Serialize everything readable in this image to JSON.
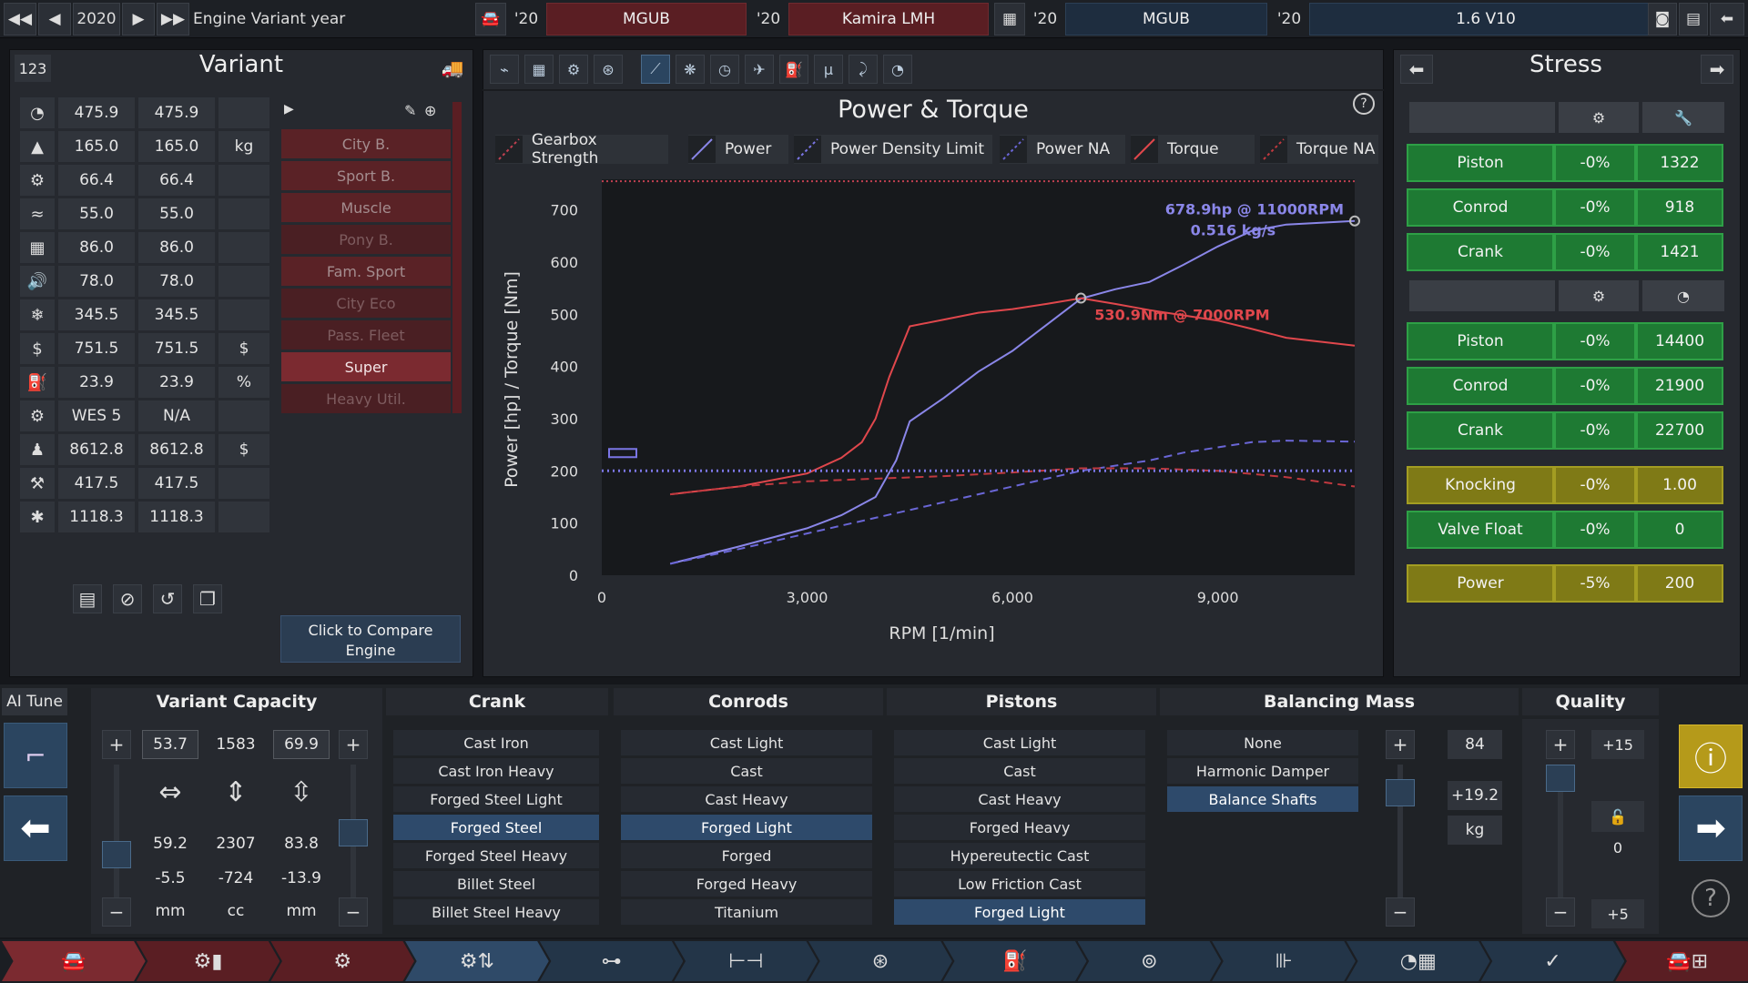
{
  "topbar": {
    "year": "2020",
    "year_label": "Engine Variant year",
    "sel1_year": "'20",
    "sel1": "MGUB",
    "sel2_year": "'20",
    "sel2": "Kamira LMH",
    "sel3_year": "'20",
    "sel3": "MGUB",
    "sel4_year": "'20",
    "sel4": "1.6 V10"
  },
  "variant": {
    "id": "123",
    "title": "Variant",
    "rows": [
      {
        "icon": "rpm-icon",
        "a": "475.9",
        "b": "475.9",
        "unit": ""
      },
      {
        "icon": "weight-icon",
        "a": "165.0",
        "b": "165.0",
        "unit": "kg"
      },
      {
        "icon": "engine-icon",
        "a": "66.4",
        "b": "66.4",
        "unit": ""
      },
      {
        "icon": "smoothness-icon",
        "a": "55.0",
        "b": "55.0",
        "unit": ""
      },
      {
        "icon": "reliability-icon",
        "a": "86.0",
        "b": "86.0",
        "unit": ""
      },
      {
        "icon": "noise-icon",
        "a": "78.0",
        "b": "78.0",
        "unit": ""
      },
      {
        "icon": "emissions-icon",
        "a": "345.5",
        "b": "345.5",
        "unit": ""
      },
      {
        "icon": "cost-icon",
        "a": "751.5",
        "b": "751.5",
        "unit": "$"
      },
      {
        "icon": "fuel-icon",
        "a": "23.9",
        "b": "23.9",
        "unit": "%"
      },
      {
        "icon": "fuel-type-icon",
        "a": "WES 5",
        "b": "N/A",
        "unit": ""
      },
      {
        "icon": "engineering-cost-icon",
        "a": "8612.8",
        "b": "8612.8",
        "unit": "$"
      },
      {
        "icon": "tooling-icon",
        "a": "417.5",
        "b": "417.5",
        "unit": ""
      },
      {
        "icon": "service-icon",
        "a": "1118.3",
        "b": "1118.3",
        "unit": ""
      }
    ],
    "categories": [
      {
        "label": "City B.",
        "state": "mid"
      },
      {
        "label": "Sport B.",
        "state": "mid"
      },
      {
        "label": "Muscle",
        "state": "mid"
      },
      {
        "label": "Pony B.",
        "state": "dim"
      },
      {
        "label": "Fam. Sport",
        "state": "mid"
      },
      {
        "label": "City Eco",
        "state": "dim"
      },
      {
        "label": "Pass. Fleet",
        "state": "dim"
      },
      {
        "label": "Super",
        "state": "sel"
      },
      {
        "label": "Heavy Util.",
        "state": "dim"
      }
    ],
    "compare_line1": "Click to Compare",
    "compare_line2": "Engine"
  },
  "chart": {
    "toolbar_icons": [
      "power-graph-icon",
      "layout-icon",
      "engine-icon",
      "turbo-icon",
      "torque-graph-icon",
      "cooling-icon",
      "gauge-icon",
      "tuning-icon",
      "fuel-icon",
      "mu-icon",
      "exhaust-icon",
      "rpm-gauge-icon"
    ],
    "help": "?"
  },
  "chart_data": {
    "type": "line",
    "title": "Power & Torque",
    "xlabel": "RPM [1/min]",
    "ylabel": "Power [hp] / Torque [Nm]",
    "xlim": [
      0,
      11000
    ],
    "ylim": [
      0,
      750
    ],
    "xticks": [
      {
        "v": 0,
        "label": "0"
      },
      {
        "v": 3000,
        "label": "3,000"
      },
      {
        "v": 6000,
        "label": "6,000"
      },
      {
        "v": 9000,
        "label": "9,000"
      }
    ],
    "yticks": [
      0,
      100,
      200,
      300,
      400,
      500,
      600,
      700
    ],
    "legend": [
      {
        "name": "Gearbox Strength",
        "color": "#c04050",
        "dash": true
      },
      {
        "name": "Power",
        "color": "#8a86e8",
        "dash": false
      },
      {
        "name": "Power Density Limit",
        "color": "#7b76e6",
        "dash": true
      },
      {
        "name": "Power NA",
        "color": "#6a66d6",
        "dash": true
      },
      {
        "name": "Torque",
        "color": "#e0474c",
        "dash": false
      },
      {
        "name": "Torque NA",
        "color": "#c0393f",
        "dash": true
      }
    ],
    "series": [
      {
        "name": "Power",
        "color": "#8a86e8",
        "dash": false,
        "points": [
          [
            1000,
            22
          ],
          [
            2000,
            55
          ],
          [
            3000,
            90
          ],
          [
            3500,
            115
          ],
          [
            4000,
            150
          ],
          [
            4300,
            220
          ],
          [
            4500,
            295
          ],
          [
            5000,
            340
          ],
          [
            5500,
            390
          ],
          [
            6000,
            430
          ],
          [
            6500,
            480
          ],
          [
            7000,
            530
          ],
          [
            7500,
            548
          ],
          [
            8000,
            562
          ],
          [
            8500,
            595
          ],
          [
            9000,
            630
          ],
          [
            9500,
            660
          ],
          [
            10000,
            672
          ],
          [
            11000,
            679
          ]
        ]
      },
      {
        "name": "Power NA",
        "color": "#6a66d6",
        "dash": true,
        "points": [
          [
            1000,
            22
          ],
          [
            2000,
            50
          ],
          [
            3000,
            80
          ],
          [
            4000,
            110
          ],
          [
            5000,
            140
          ],
          [
            6000,
            170
          ],
          [
            7000,
            200
          ],
          [
            7500,
            210
          ],
          [
            8000,
            220
          ],
          [
            8500,
            235
          ],
          [
            9000,
            245
          ],
          [
            9500,
            255
          ],
          [
            10000,
            258
          ],
          [
            11000,
            256
          ]
        ]
      },
      {
        "name": "Torque",
        "color": "#e0474c",
        "dash": false,
        "points": [
          [
            1000,
            155
          ],
          [
            2000,
            170
          ],
          [
            3000,
            195
          ],
          [
            3500,
            225
          ],
          [
            3800,
            255
          ],
          [
            4000,
            300
          ],
          [
            4200,
            380
          ],
          [
            4500,
            477
          ],
          [
            5000,
            490
          ],
          [
            5500,
            503
          ],
          [
            6000,
            510
          ],
          [
            6500,
            520
          ],
          [
            7000,
            531
          ],
          [
            7500,
            520
          ],
          [
            8000,
            508
          ],
          [
            8500,
            498
          ],
          [
            9000,
            488
          ],
          [
            9500,
            472
          ],
          [
            10000,
            455
          ],
          [
            11000,
            440
          ]
        ]
      },
      {
        "name": "Torque NA",
        "color": "#c0393f",
        "dash": true,
        "points": [
          [
            1000,
            155
          ],
          [
            2000,
            170
          ],
          [
            3000,
            180
          ],
          [
            4000,
            185
          ],
          [
            5000,
            190
          ],
          [
            6000,
            197
          ],
          [
            7000,
            205
          ],
          [
            8000,
            205
          ],
          [
            9000,
            200
          ],
          [
            10000,
            188
          ],
          [
            11000,
            170
          ]
        ]
      },
      {
        "name": "Power Density Limit",
        "color": "#7b76e6",
        "dash": true,
        "points": [
          [
            0,
            200
          ],
          [
            11000,
            200
          ]
        ]
      },
      {
        "name": "Gearbox Strength",
        "color": "#c04050",
        "dash": true,
        "points": [
          [
            0,
            775
          ],
          [
            11000,
            775
          ]
        ]
      }
    ],
    "annotations": {
      "power_peak": "678.9hp @ 11000RPM",
      "airflow": "0.516 kg/s",
      "torque_peak": "530.9Nm @ 7000RPM"
    }
  },
  "stress": {
    "title": "Stress",
    "group1": [
      {
        "label": "Piston",
        "pct": "-0%",
        "val": "1322",
        "color": "green"
      },
      {
        "label": "Conrod",
        "pct": "-0%",
        "val": "918",
        "color": "green"
      },
      {
        "label": "Crank",
        "pct": "-0%",
        "val": "1421",
        "color": "green"
      }
    ],
    "group2": [
      {
        "label": "Piston",
        "pct": "-0%",
        "val": "14400",
        "color": "green"
      },
      {
        "label": "Conrod",
        "pct": "-0%",
        "val": "21900",
        "color": "green"
      },
      {
        "label": "Crank",
        "pct": "-0%",
        "val": "22700",
        "color": "green"
      }
    ],
    "knocking": {
      "label": "Knocking",
      "pct": "-0%",
      "val": "1.00"
    },
    "valvefloat": {
      "label": "Valve Float",
      "pct": "-0%",
      "val": "0"
    },
    "power": {
      "label": "Power",
      "pct": "-5%",
      "val": "200"
    },
    "colors": {
      "green": "#1e7a33",
      "yellow": "#7f7a16"
    }
  },
  "bottom": {
    "ai_tune": "AI Tune",
    "capacity": {
      "title": "Variant Capacity",
      "bore": "53.7",
      "displacement_top": "1583",
      "stroke": "69.9",
      "bore_val": "59.2",
      "disp_val": "2307",
      "stroke_val": "83.8",
      "bore_delta": "-5.5",
      "disp_delta": "-724",
      "stroke_delta": "-13.9",
      "unit_mm": "mm",
      "unit_cc": "cc",
      "unit_mm2": "mm"
    },
    "crank": {
      "title": "Crank",
      "items": [
        "Cast Iron",
        "Cast Iron Heavy",
        "Forged Steel Light",
        "Forged Steel",
        "Forged Steel Heavy",
        "Billet Steel",
        "Billet Steel Heavy"
      ],
      "selected": 3
    },
    "conrods": {
      "title": "Conrods",
      "items": [
        "Cast Light",
        "Cast",
        "Cast Heavy",
        "Forged Light",
        "Forged",
        "Forged Heavy",
        "Titanium"
      ],
      "selected": 3
    },
    "pistons": {
      "title": "Pistons",
      "items": [
        "Cast Light",
        "Cast",
        "Cast Heavy",
        "Forged Heavy",
        "Hypereutectic Cast",
        "Low Friction Cast",
        "Forged Light"
      ],
      "selected": 6
    },
    "balancing": {
      "title": "Balancing Mass",
      "items": [
        "None",
        "Harmonic Damper",
        "Balance Shafts"
      ],
      "selected": 2,
      "value": "84",
      "delta": "+19.2",
      "unit": "kg"
    },
    "quality": {
      "title": "Quality",
      "top": "+15",
      "mid": "0",
      "bottom": "+5"
    }
  },
  "nav": {
    "tabs": [
      "car-icon",
      "family-icon",
      "block-icon",
      "bottom-end-icon",
      "top-end-icon",
      "aspiration-icon",
      "turbo-icon",
      "fuel-icon",
      "exhaust-icon",
      "electronics-icon",
      "test-icon",
      "finish-icon",
      "car-designer-icon"
    ]
  }
}
